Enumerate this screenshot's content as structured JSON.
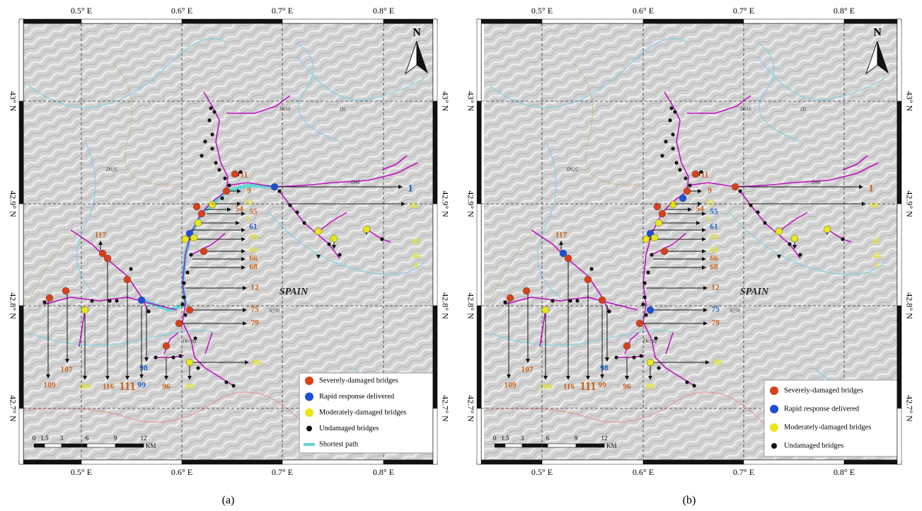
{
  "panels": [
    {
      "lon_ticks": [
        "0.5° E",
        "0.6° E",
        "0.7° E",
        "0.8° E"
      ],
      "lat_ticks": [
        "43° N",
        "42.9° N",
        "42.8° N",
        "42.7° N"
      ],
      "north": "N",
      "country": "SPAIN",
      "road_labels": [
        "D618",
        "D5",
        "D925",
        "D44",
        "N230",
        "D618a"
      ],
      "scale": {
        "ticks": [
          "0",
          "1.5",
          "3",
          "6",
          "9",
          "12"
        ],
        "unit": "KM"
      },
      "legend": [
        {
          "label": "Severely-damaged bridges",
          "color": "#d9401a"
        },
        {
          "label": "Rapid response delivered",
          "color": "#1c4fd6"
        },
        {
          "label": "Moderately-damaged bridges",
          "color": "#e8e818"
        },
        {
          "label": "Undamaged bridges",
          "color": "#111111"
        },
        {
          "label": "Shortest path",
          "color": "#5fd6d6"
        }
      ],
      "bridge_labels": [
        {
          "text": "1",
          "color": "#1f5fbf"
        },
        {
          "text": "9",
          "color": "#c8641e"
        },
        {
          "text": "11",
          "color": "#c8641e"
        },
        {
          "text": "52",
          "color": "#e6e61e"
        },
        {
          "text": "46",
          "color": "#e6e61e"
        },
        {
          "text": "54",
          "color": "#c8641e"
        },
        {
          "text": "55",
          "color": "#c8641e"
        },
        {
          "text": "5",
          "color": "#e6e61e"
        },
        {
          "text": "61",
          "color": "#1f5fbf"
        },
        {
          "text": "59",
          "color": "#e6e61e"
        },
        {
          "text": "64",
          "color": "#e6e61e"
        },
        {
          "text": "66",
          "color": "#c8641e"
        },
        {
          "text": "68",
          "color": "#c8641e"
        },
        {
          "text": "45",
          "color": "#e6e61e"
        },
        {
          "text": "44",
          "color": "#e6e61e"
        },
        {
          "text": "4",
          "color": "#e6e61e"
        },
        {
          "text": "117",
          "color": "#c8641e"
        },
        {
          "text": "12",
          "color": "#c8641e"
        },
        {
          "text": "75",
          "color": "#c8641e"
        },
        {
          "text": "79",
          "color": "#c8641e"
        },
        {
          "text": "88",
          "color": "#e6e61e"
        },
        {
          "text": "107",
          "color": "#c8641e"
        },
        {
          "text": "109",
          "color": "#c8641e"
        },
        {
          "text": "104",
          "color": "#e6e61e"
        },
        {
          "text": "116",
          "color": "#c8641e"
        },
        {
          "text": "111",
          "color": "#c8641e"
        },
        {
          "text": "99",
          "color": "#1f5fbf"
        },
        {
          "text": "98",
          "color": "#1f5fbf"
        },
        {
          "text": "96",
          "color": "#c8641e"
        },
        {
          "text": "89",
          "color": "#e6e61e"
        }
      ],
      "caption": "(a)"
    },
    {
      "lon_ticks": [
        "0.5° E",
        "0.6° E",
        "0.7° E",
        "0.8° E"
      ],
      "lat_ticks": [
        "43° N",
        "42.9° N",
        "42.8° N",
        "42.7° N"
      ],
      "north": "N",
      "country": "SPAIN",
      "road_labels": [
        "D618",
        "D5",
        "D925",
        "D44",
        "N230",
        "D618a"
      ],
      "scale": {
        "ticks": [
          "0",
          "1.5",
          "3",
          "6",
          "9",
          "12"
        ],
        "unit": "KM"
      },
      "legend": [
        {
          "label": "Severely-damaged bridges",
          "color": "#d9401a"
        },
        {
          "label": "Rapid response delivered",
          "color": "#1c4fd6"
        },
        {
          "label": "Moderately-damaged bridges",
          "color": "#e8e818"
        },
        {
          "label": "Undamaged bridges",
          "color": "#111111"
        }
      ],
      "bridge_labels": [
        {
          "text": "1",
          "color": "#c8641e"
        },
        {
          "text": "9",
          "color": "#c8641e"
        },
        {
          "text": "11",
          "color": "#c8641e"
        },
        {
          "text": "52",
          "color": "#e6e61e"
        },
        {
          "text": "46",
          "color": "#e6e61e"
        },
        {
          "text": "54",
          "color": "#c8641e"
        },
        {
          "text": "55",
          "color": "#1f5fbf"
        },
        {
          "text": "5",
          "color": "#e6e61e"
        },
        {
          "text": "61",
          "color": "#1f5fbf"
        },
        {
          "text": "59",
          "color": "#e6e61e"
        },
        {
          "text": "64",
          "color": "#e6e61e"
        },
        {
          "text": "66",
          "color": "#c8641e"
        },
        {
          "text": "68",
          "color": "#c8641e"
        },
        {
          "text": "45",
          "color": "#e6e61e"
        },
        {
          "text": "44",
          "color": "#e6e61e"
        },
        {
          "text": "4",
          "color": "#e6e61e"
        },
        {
          "text": "117",
          "color": "#c8641e"
        },
        {
          "text": "12",
          "color": "#c8641e"
        },
        {
          "text": "75",
          "color": "#1f5fbf"
        },
        {
          "text": "79",
          "color": "#c8641e"
        },
        {
          "text": "88",
          "color": "#e6e61e"
        },
        {
          "text": "107",
          "color": "#c8641e"
        },
        {
          "text": "109",
          "color": "#c8641e"
        },
        {
          "text": "104",
          "color": "#e6e61e"
        },
        {
          "text": "116",
          "color": "#c8641e"
        },
        {
          "text": "111",
          "color": "#c8641e"
        },
        {
          "text": "99",
          "color": "#c8641e"
        },
        {
          "text": "98",
          "color": "#1f5fbf"
        },
        {
          "text": "96",
          "color": "#c8641e"
        },
        {
          "text": "89",
          "color": "#e6e61e"
        }
      ],
      "caption": "(b)"
    }
  ]
}
